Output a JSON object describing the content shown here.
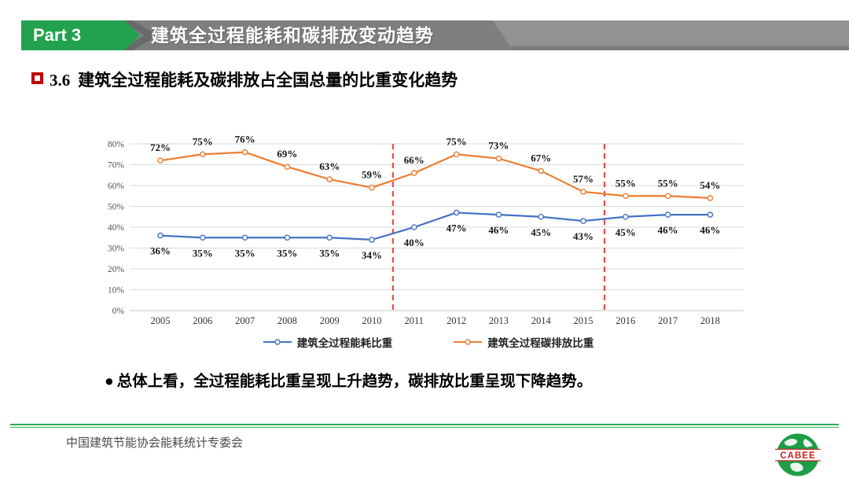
{
  "slide": {
    "part_label": "Part 3",
    "banner_title": "建筑全过程能耗和碳排放变动趋势",
    "section_number": "3.6",
    "section_title": "建筑全过程能耗及碳排放占全国总量的比重变化趋势",
    "bullet_marker": "●",
    "bullet_text": "总体上看，全过程能耗比重呈现上升趋势，碳排放比重呈现下降趋势。",
    "footer_text": "中国建筑节能协会能耗统计专委会",
    "logo_text": "CABEE"
  },
  "colors": {
    "accent_green": "#22a24e",
    "banner_gray": "#8f8f8f",
    "heading_red": "#c00000",
    "logo_red": "#cc2222",
    "reference_red": "#f24b4b",
    "grid_gray": "#dadada"
  },
  "chart_data": {
    "type": "line",
    "title": "",
    "categories": [
      "2005",
      "2006",
      "2007",
      "2008",
      "2009",
      "2010",
      "2011",
      "2012",
      "2013",
      "2014",
      "2015",
      "2016",
      "2017",
      "2018"
    ],
    "series": [
      {
        "name": "建筑全过程能耗比重",
        "color": "#4472c4",
        "values": [
          36,
          35,
          35,
          35,
          35,
          34,
          40,
          47,
          46,
          45,
          43,
          45,
          46,
          46
        ],
        "label_position": "below"
      },
      {
        "name": "建筑全过程碳排放比重",
        "color": "#ed7d31",
        "values": [
          72,
          75,
          76,
          69,
          63,
          59,
          66,
          75,
          73,
          67,
          57,
          55,
          55,
          54
        ],
        "label_position": "above"
      }
    ],
    "ylim": [
      0,
      80
    ],
    "ytick_step": 10,
    "tick_suffix": "%",
    "data_label_suffix": "%",
    "grid": true,
    "legend_position": "bottom",
    "reference_lines": {
      "style": "dashed",
      "color": "#f24b4b",
      "between_categories": [
        [
          "2010",
          "2011"
        ],
        [
          "2015",
          "2016"
        ]
      ]
    }
  }
}
